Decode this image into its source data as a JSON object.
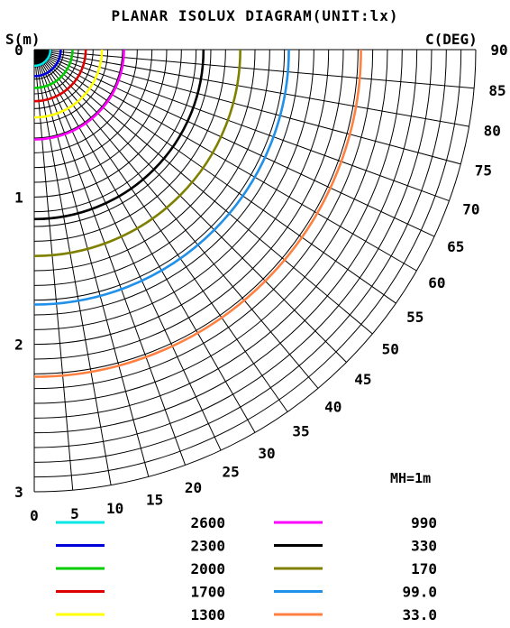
{
  "chart_data": {
    "type": "polar-isolux",
    "title": "PLANAR ISOLUX DIAGRAM(UNIT:lx)",
    "radial_axis_label": "S(m)",
    "angle_axis_label": "C(DEG)",
    "note": "MH=1m",
    "radial_range": [
      0,
      3
    ],
    "radial_ticks": [
      0,
      1,
      2,
      3
    ],
    "radial_grid_step": 0.1,
    "angle_range_deg": [
      0,
      90
    ],
    "angle_ticks": [
      0,
      5,
      10,
      15,
      20,
      25,
      30,
      35,
      40,
      45,
      50,
      55,
      60,
      65,
      70,
      75,
      80,
      85,
      90
    ],
    "grid": true,
    "series": [
      {
        "name": "2600",
        "color": "#00e5e5",
        "radius_m": 0.11
      },
      {
        "name": "2300",
        "color": "#0000dd",
        "radius_m": 0.18
      },
      {
        "name": "2000",
        "color": "#00cc00",
        "radius_m": 0.26
      },
      {
        "name": "1700",
        "color": "#dd0000",
        "radius_m": 0.35
      },
      {
        "name": "1300",
        "color": "#ffff00",
        "radius_m": 0.46
      },
      {
        "name": "990",
        "color": "#ff00ff",
        "radius_m": 0.61
      },
      {
        "name": "330",
        "color": "#000000",
        "radius_m": 1.15
      },
      {
        "name": "170",
        "color": "#808000",
        "radius_m": 1.4
      },
      {
        "name": "99.0",
        "color": "#2090e8",
        "radius_m": 1.73
      },
      {
        "name": "33.0",
        "color": "#ff8040",
        "radius_m": 2.22
      }
    ]
  }
}
